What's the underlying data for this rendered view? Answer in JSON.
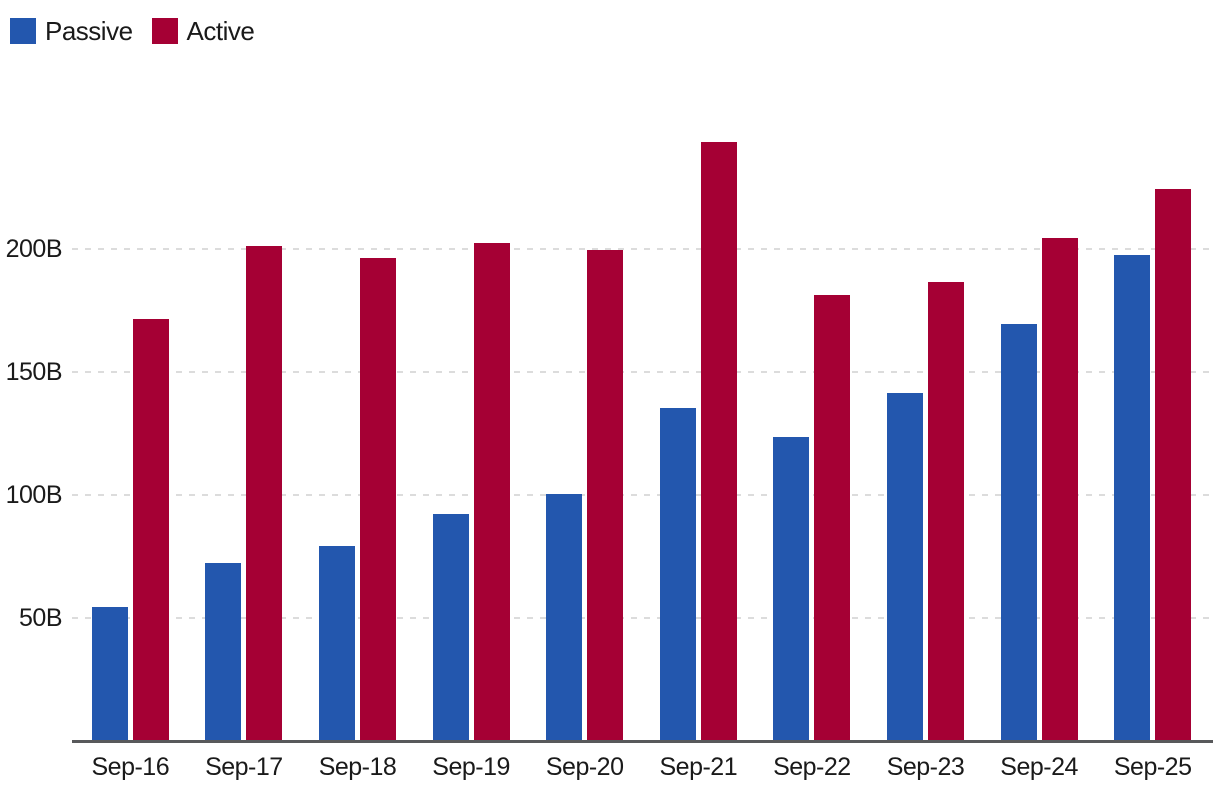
{
  "legend": {
    "items": [
      {
        "label": "Passive",
        "color": "#2357ae"
      },
      {
        "label": "Active",
        "color": "#a50034"
      }
    ]
  },
  "colors": {
    "passive": "#2357ae",
    "active": "#a50034",
    "gridline": "#dcdcdc",
    "axis_line": "#58595b",
    "tick_text": "#1a1a1a"
  },
  "chart_data": {
    "type": "bar",
    "title": "",
    "xlabel": "",
    "ylabel": "",
    "unit": "B",
    "categories": [
      "Sep-16",
      "Sep-17",
      "Sep-18",
      "Sep-19",
      "Sep-20",
      "Sep-21",
      "Sep-22",
      "Sep-23",
      "Sep-24",
      "Sep-25"
    ],
    "series": [
      {
        "name": "Passive",
        "color": "#2357ae",
        "values": [
          54,
          72,
          79,
          92,
          100,
          135,
          123,
          141,
          169,
          197
        ]
      },
      {
        "name": "Active",
        "color": "#a50034",
        "values": [
          171,
          201,
          196,
          202,
          199,
          243,
          181,
          186,
          204,
          224
        ]
      }
    ],
    "yticks": [
      50,
      100,
      150,
      200
    ],
    "ytick_labels": [
      "50B",
      "100B",
      "150B",
      "200B"
    ],
    "ylim": [
      0,
      250
    ],
    "grid": "horizontal-dashed",
    "legend_position": "top-left"
  }
}
